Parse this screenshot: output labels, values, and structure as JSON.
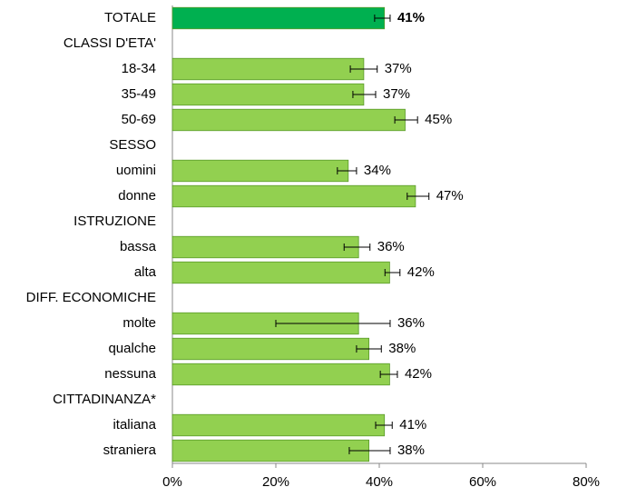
{
  "chart_data": {
    "type": "bar",
    "orientation": "horizontal",
    "categories": [
      "TOTALE",
      "CLASSI D'ETA'",
      "18-34",
      "35-49",
      "50-69",
      "SESSO",
      "uomini",
      "donne",
      "ISTRUZIONE",
      "bassa",
      "alta",
      "DIFF. ECONOMICHE",
      "molte",
      "qualche",
      "nessuna",
      "CITTADINANZA*",
      "italiana",
      "straniera"
    ],
    "values": [
      41,
      null,
      37,
      37,
      45,
      null,
      34,
      47,
      null,
      36,
      42,
      null,
      36,
      38,
      42,
      null,
      41,
      38
    ],
    "value_labels": [
      "41%",
      null,
      "37%",
      "37%",
      "45%",
      null,
      "34%",
      "47%",
      null,
      "36%",
      "42%",
      null,
      "36%",
      "38%",
      "42%",
      null,
      "41%",
      "38%"
    ],
    "ci_low": [
      39.1,
      null,
      34.4,
      34.9,
      43.0,
      null,
      31.9,
      45.4,
      null,
      33.2,
      41.1,
      null,
      20.0,
      35.6,
      40.2,
      null,
      39.3,
      34.2
    ],
    "ci_high": [
      42.1,
      null,
      39.6,
      39.3,
      47.4,
      null,
      35.6,
      49.6,
      null,
      38.2,
      44.0,
      null,
      42.1,
      40.4,
      43.5,
      null,
      42.5,
      42.1
    ],
    "bar_colors": [
      "#00b050",
      null,
      "#92d050",
      "#92d050",
      "#92d050",
      null,
      "#92d050",
      "#92d050",
      null,
      "#92d050",
      "#92d050",
      null,
      "#92d050",
      "#92d050",
      "#92d050",
      null,
      "#92d050",
      "#92d050"
    ],
    "xlim": [
      0,
      80
    ],
    "xticks": [
      {
        "value": 0,
        "label": "0%"
      },
      {
        "value": 20,
        "label": "20%"
      },
      {
        "value": 40,
        "label": "40%"
      },
      {
        "value": 60,
        "label": "60%"
      },
      {
        "value": 80,
        "label": "80%"
      }
    ],
    "grid": false
  }
}
